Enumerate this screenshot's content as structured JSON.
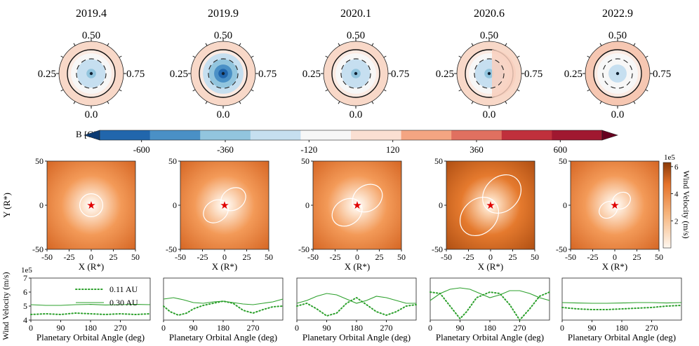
{
  "epochs": [
    "2019.4",
    "2019.9",
    "2020.1",
    "2020.6",
    "2022.9"
  ],
  "polar": {
    "phase_labels": [
      "0.50",
      "0.25",
      "0.75",
      "0.0"
    ],
    "field_strength_G": [
      -250,
      -520,
      -280,
      -260,
      -170
    ]
  },
  "colorbar": {
    "label": "B [G]",
    "ticks": [
      "-600",
      "-360",
      "-120",
      "120",
      "360",
      "600"
    ],
    "range": [
      -720,
      720
    ],
    "colors": [
      "#0b3a73",
      "#2166ac",
      "#4a90c6",
      "#92c5de",
      "#c6dff0",
      "#f7f7f7",
      "#fadfd2",
      "#f4a582",
      "#e07060",
      "#c0303c",
      "#a01830",
      "#67001f"
    ]
  },
  "wind_maps": {
    "x_label": "X (R*)",
    "y_label": "Y (R*)",
    "ticks_x": [
      "-50",
      "-25",
      "0",
      "25",
      "50"
    ],
    "ticks_y": [
      "50",
      "0",
      "-50"
    ],
    "colorbar_label": "Wind Velocity (m/s)",
    "colorbar_ticks": [
      "6",
      "4",
      "2"
    ],
    "colorbar_exponent": "1e5",
    "star_symbol": "★"
  },
  "chart_data": [
    {
      "type": "line",
      "panel": "2019.4",
      "title": "",
      "xlabel": "Planetary Orbital Angle (deg)",
      "ylabel": "Wind Velocity (m/s)",
      "y_exponent": "1e5",
      "xlim": [
        0,
        360
      ],
      "ylim": [
        4,
        7
      ],
      "xticks": [
        "0",
        "90",
        "180",
        "270"
      ],
      "yticks": [
        "7",
        "6",
        "5",
        "4"
      ],
      "legend": [
        "0.11 AU",
        "0.30 AU"
      ],
      "series": [
        {
          "name": "0.11 AU",
          "style": "dotted",
          "x": [
            0,
            45,
            90,
            135,
            180,
            225,
            270,
            315,
            360
          ],
          "values": [
            4.4,
            4.45,
            4.4,
            4.5,
            4.45,
            4.4,
            4.45,
            4.4,
            4.45
          ]
        },
        {
          "name": "0.30 AU",
          "style": "solid",
          "x": [
            0,
            45,
            90,
            135,
            180,
            225,
            270,
            315,
            360
          ],
          "values": [
            5.1,
            5.05,
            5.05,
            5.1,
            5.12,
            5.08,
            5.1,
            5.12,
            5.1
          ]
        }
      ]
    },
    {
      "type": "line",
      "panel": "2019.9",
      "xlabel": "Planetary Orbital Angle (deg)",
      "xlim": [
        0,
        360
      ],
      "ylim": [
        4,
        7
      ],
      "xticks": [
        "0",
        "90",
        "180",
        "270"
      ],
      "series": [
        {
          "name": "0.11 AU",
          "style": "dotted",
          "x": [
            0,
            20,
            45,
            70,
            90,
            120,
            150,
            180,
            210,
            240,
            270,
            300,
            330,
            360
          ],
          "values": [
            5.0,
            4.6,
            4.35,
            4.5,
            4.8,
            5.05,
            5.2,
            5.35,
            5.2,
            4.7,
            4.5,
            4.75,
            4.95,
            5.0
          ]
        },
        {
          "name": "0.30 AU",
          "style": "solid",
          "x": [
            0,
            30,
            60,
            90,
            120,
            150,
            180,
            210,
            240,
            270,
            300,
            330,
            360
          ],
          "values": [
            5.5,
            5.6,
            5.45,
            5.25,
            5.2,
            5.3,
            5.35,
            5.25,
            5.15,
            5.1,
            5.2,
            5.3,
            5.5
          ]
        }
      ]
    },
    {
      "type": "line",
      "panel": "2020.1",
      "xlabel": "Planetary Orbital Angle (deg)",
      "xlim": [
        0,
        360
      ],
      "ylim": [
        4,
        7
      ],
      "xticks": [
        "0",
        "90",
        "180",
        "270"
      ],
      "series": [
        {
          "name": "0.11 AU",
          "style": "dotted",
          "x": [
            0,
            30,
            60,
            90,
            120,
            150,
            180,
            210,
            240,
            270,
            300,
            330,
            360
          ],
          "values": [
            5.0,
            5.2,
            4.8,
            4.3,
            4.5,
            5.2,
            5.6,
            5.1,
            4.6,
            4.35,
            4.6,
            5.0,
            5.1
          ]
        },
        {
          "name": "0.30 AU",
          "style": "solid",
          "x": [
            0,
            30,
            60,
            90,
            120,
            150,
            180,
            210,
            240,
            270,
            300,
            330,
            360
          ],
          "values": [
            5.2,
            5.4,
            5.7,
            5.9,
            5.8,
            5.5,
            5.2,
            5.4,
            5.7,
            5.6,
            5.4,
            5.2,
            5.2
          ]
        }
      ]
    },
    {
      "type": "line",
      "panel": "2020.6",
      "xlabel": "Planetary Orbital Angle (deg)",
      "xlim": [
        0,
        360
      ],
      "ylim": [
        4,
        7
      ],
      "xticks": [
        "0",
        "90",
        "180",
        "270"
      ],
      "series": [
        {
          "name": "0.11 AU",
          "style": "dotted",
          "x": [
            0,
            30,
            60,
            90,
            110,
            140,
            180,
            210,
            240,
            270,
            300,
            330,
            360
          ],
          "values": [
            6.0,
            5.9,
            5.0,
            4.1,
            4.6,
            5.6,
            6.0,
            5.9,
            5.1,
            4.0,
            4.8,
            5.7,
            6.0
          ]
        },
        {
          "name": "0.30 AU",
          "style": "solid",
          "x": [
            0,
            30,
            60,
            90,
            120,
            150,
            180,
            210,
            240,
            270,
            300,
            330,
            360
          ],
          "values": [
            5.4,
            5.9,
            6.2,
            6.3,
            6.2,
            5.9,
            5.6,
            5.8,
            6.1,
            6.1,
            5.9,
            5.6,
            5.4
          ]
        }
      ]
    },
    {
      "type": "line",
      "panel": "2022.9",
      "xlabel": "Planetary Orbital Angle (deg)",
      "xlim": [
        0,
        360
      ],
      "ylim": [
        4,
        7
      ],
      "xticks": [
        "0",
        "90",
        "180",
        "270"
      ],
      "series": [
        {
          "name": "0.11 AU",
          "style": "dotted",
          "x": [
            0,
            45,
            90,
            135,
            180,
            225,
            270,
            315,
            360
          ],
          "values": [
            4.9,
            4.8,
            4.75,
            4.75,
            4.8,
            4.85,
            4.9,
            5.0,
            5.05
          ]
        },
        {
          "name": "0.30 AU",
          "style": "solid",
          "x": [
            0,
            45,
            90,
            135,
            180,
            225,
            270,
            315,
            360
          ],
          "values": [
            5.25,
            5.22,
            5.2,
            5.2,
            5.22,
            5.25,
            5.25,
            5.22,
            5.25
          ]
        }
      ]
    }
  ]
}
